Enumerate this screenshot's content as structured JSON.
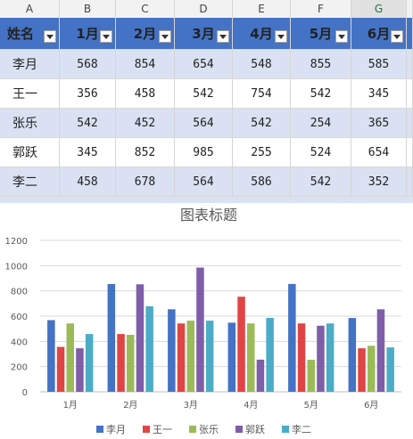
{
  "column_letters": [
    "A",
    "B",
    "C",
    "D",
    "E",
    "F",
    "G"
  ],
  "table": {
    "headers": [
      "姓名",
      "1月",
      "2月",
      "3月",
      "4月",
      "5月",
      "6月"
    ],
    "rows": [
      {
        "name": "李月",
        "values": [
          "568",
          "854",
          "654",
          "548",
          "855",
          "585"
        ]
      },
      {
        "name": "王一",
        "values": [
          "356",
          "458",
          "542",
          "754",
          "542",
          "345"
        ]
      },
      {
        "name": "张乐",
        "values": [
          "542",
          "452",
          "564",
          "542",
          "254",
          "365"
        ]
      },
      {
        "name": "郭跃",
        "values": [
          "345",
          "852",
          "985",
          "255",
          "524",
          "654"
        ]
      },
      {
        "name": "李二",
        "values": [
          "458",
          "678",
          "564",
          "586",
          "542",
          "352"
        ]
      }
    ]
  },
  "colors": {
    "header_fill": "#4472c4",
    "band_fill": "#d9e1f2"
  },
  "chart_data": {
    "type": "bar",
    "title": "图表标题",
    "categories": [
      "1月",
      "2月",
      "3月",
      "4月",
      "5月",
      "6月"
    ],
    "ylim": [
      0,
      1200
    ],
    "yticks": [
      0,
      200,
      400,
      600,
      800,
      1000,
      1200
    ],
    "grid": true,
    "legend": "bottom",
    "series": [
      {
        "name": "李月",
        "color": "#4472c4",
        "values": [
          568,
          854,
          654,
          548,
          855,
          585
        ]
      },
      {
        "name": "王一",
        "color": "#e04545",
        "values": [
          356,
          458,
          542,
          754,
          542,
          345
        ]
      },
      {
        "name": "张乐",
        "color": "#9bbb59",
        "values": [
          542,
          452,
          564,
          542,
          254,
          365
        ]
      },
      {
        "name": "郭跃",
        "color": "#7e5ea8",
        "values": [
          345,
          852,
          985,
          255,
          524,
          654
        ]
      },
      {
        "name": "李二",
        "color": "#4bacc6",
        "values": [
          458,
          678,
          564,
          586,
          542,
          352
        ]
      }
    ]
  }
}
